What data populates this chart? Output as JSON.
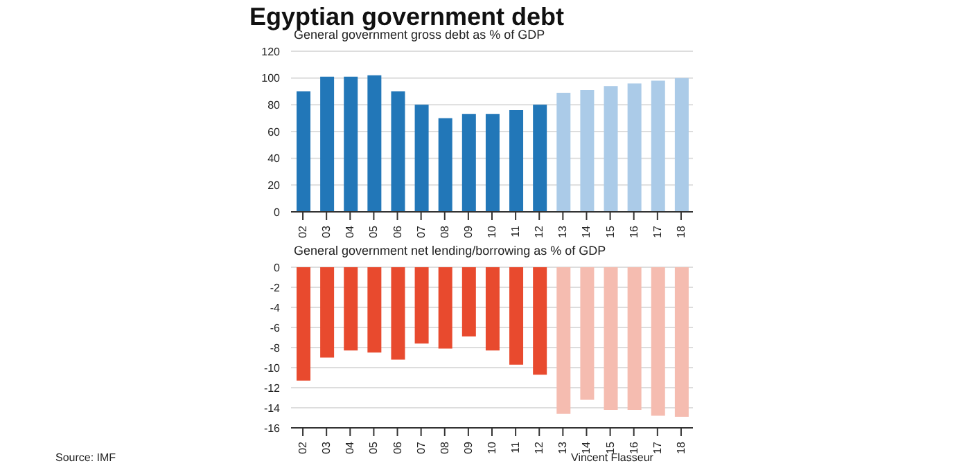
{
  "chart_data": [
    {
      "type": "bar",
      "title": "Egyptian government debt",
      "subtitle": "General government gross debt as % of GDP",
      "categories": [
        "02",
        "03",
        "04",
        "05",
        "06",
        "07",
        "08",
        "09",
        "10",
        "11",
        "12",
        "13",
        "14",
        "15",
        "16",
        "17",
        "18"
      ],
      "values": [
        90,
        101,
        101,
        102,
        90,
        80,
        70,
        73,
        73,
        76,
        80,
        89,
        91,
        94,
        96,
        98,
        100
      ],
      "colors": [
        "#2277b8",
        "#2277b8",
        "#2277b8",
        "#2277b8",
        "#2277b8",
        "#2277b8",
        "#2277b8",
        "#2277b8",
        "#2277b8",
        "#2277b8",
        "#2277b8",
        "#abcbe8",
        "#abcbe8",
        "#abcbe8",
        "#abcbe8",
        "#abcbe8",
        "#abcbe8"
      ],
      "ylim": [
        0,
        120
      ],
      "yticks": [
        0,
        20,
        40,
        60,
        80,
        100,
        120
      ],
      "grid": "y"
    },
    {
      "type": "bar",
      "subtitle": "General government net lending/borrowing as % of GDP",
      "categories": [
        "02",
        "03",
        "04",
        "05",
        "06",
        "07",
        "08",
        "09",
        "10",
        "11",
        "12",
        "13",
        "14",
        "15",
        "16",
        "17",
        "18"
      ],
      "values": [
        -11.3,
        -9,
        -8.3,
        -8.5,
        -9.2,
        -7.6,
        -8.1,
        -6.9,
        -8.3,
        -9.7,
        -10.7,
        -14.6,
        -13.2,
        -14.2,
        -14.2,
        -14.8,
        -14.9
      ],
      "colors": [
        "#e84a2e",
        "#e84a2e",
        "#e84a2e",
        "#e84a2e",
        "#e84a2e",
        "#e84a2e",
        "#e84a2e",
        "#e84a2e",
        "#e84a2e",
        "#e84a2e",
        "#e84a2e",
        "#f5bcb0",
        "#f5bcb0",
        "#f5bcb0",
        "#f5bcb0",
        "#f5bcb0",
        "#f5bcb0"
      ],
      "ylim": [
        -16,
        0
      ],
      "yticks": [
        -16,
        -14,
        -12,
        -10,
        -8,
        -6,
        -4,
        -2,
        0
      ],
      "grid": "y",
      "annotations": [
        "Source: IMF",
        "Vincent Flasseur"
      ]
    }
  ]
}
